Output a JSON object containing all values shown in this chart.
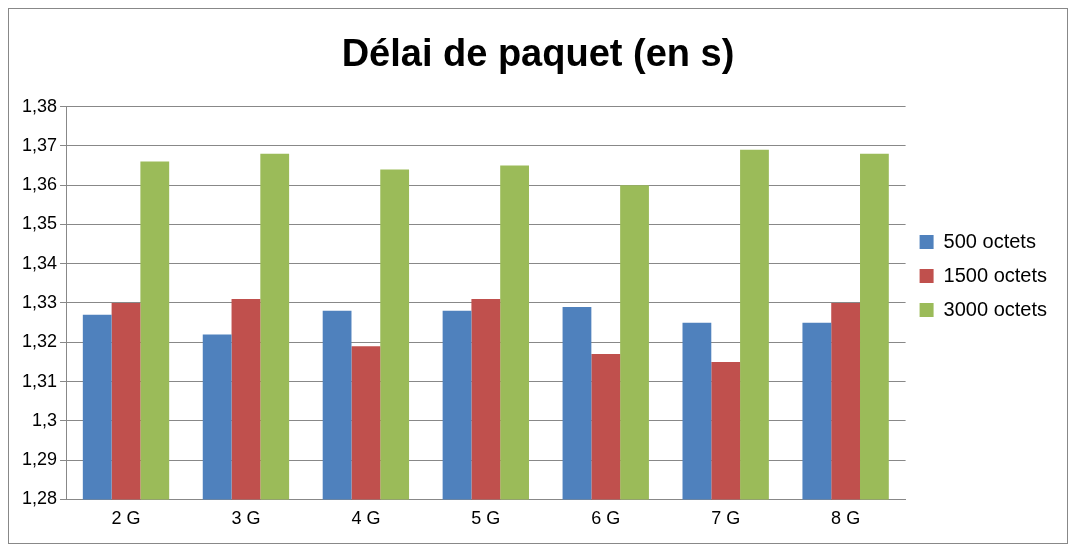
{
  "chart_data": {
    "type": "bar",
    "title": "Délai de paquet (en s)",
    "categories": [
      "2 G",
      "3 G",
      "4 G",
      "5 G",
      "6 G",
      "7 G",
      "8 G"
    ],
    "series": [
      {
        "name": "500 octets",
        "color": "#4f81bd",
        "values": [
          1.327,
          1.322,
          1.328,
          1.328,
          1.329,
          1.325,
          1.325
        ]
      },
      {
        "name": "1500 octets",
        "color": "#c0504d",
        "values": [
          1.33,
          1.331,
          1.319,
          1.331,
          1.317,
          1.315,
          1.33
        ]
      },
      {
        "name": "3000 octets",
        "color": "#9bbb59",
        "values": [
          1.366,
          1.368,
          1.364,
          1.365,
          1.36,
          1.369,
          1.368
        ]
      }
    ],
    "ylim": [
      1.28,
      1.38
    ],
    "yticks": [
      {
        "value": 1.28,
        "label": "1,28"
      },
      {
        "value": 1.29,
        "label": "1,29"
      },
      {
        "value": 1.3,
        "label": "1,3"
      },
      {
        "value": 1.31,
        "label": "1,31"
      },
      {
        "value": 1.32,
        "label": "1,32"
      },
      {
        "value": 1.33,
        "label": "1,33"
      },
      {
        "value": 1.34,
        "label": "1,34"
      },
      {
        "value": 1.35,
        "label": "1,35"
      },
      {
        "value": 1.36,
        "label": "1,36"
      },
      {
        "value": 1.37,
        "label": "1,37"
      },
      {
        "value": 1.38,
        "label": "1,38"
      }
    ],
    "grid": "y",
    "legend": "right"
  }
}
